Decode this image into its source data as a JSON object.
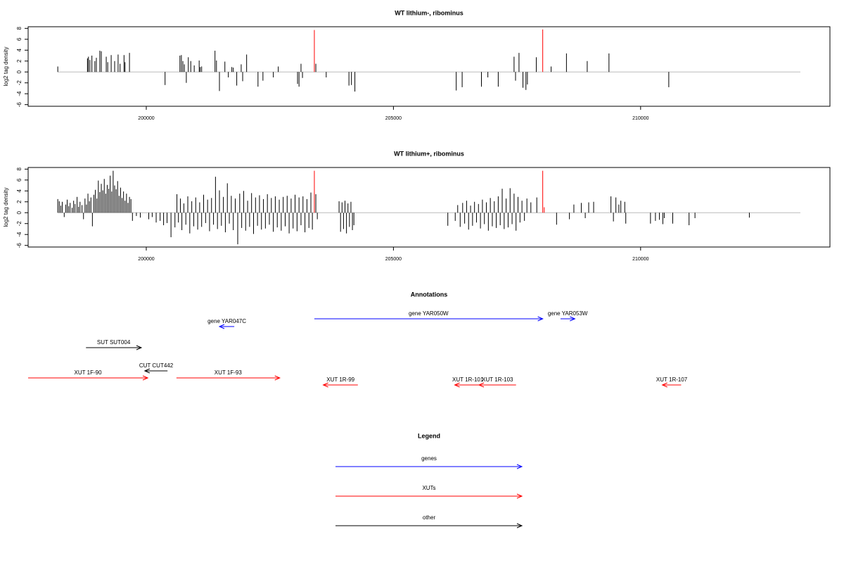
{
  "chart_data": [
    {
      "type": "spike",
      "title": "WT lithium-, ribominus",
      "y_label": "log2 tag density",
      "xlim": [
        197610,
        213830
      ],
      "xticks": [
        200000,
        205000,
        210000
      ],
      "ylim": [
        -6.3,
        8.3
      ],
      "yticks": [
        -6,
        -4,
        -2,
        0,
        2,
        4,
        6,
        8
      ],
      "series": [
        {
          "color": "#000000",
          "x": [
            198210,
            198810,
            198830,
            198860,
            198900,
            198960,
            198990,
            199060,
            199090,
            199190,
            199220,
            199290,
            199360,
            199430,
            199470,
            199550,
            199570,
            199660,
            200380,
            200680,
            200710,
            200740,
            200770,
            200810,
            200850,
            200900,
            200970,
            201070,
            201090,
            201120,
            201390,
            201420,
            201480,
            201590,
            201660,
            201730,
            201760,
            201830,
            201920,
            201950,
            202030,
            202260,
            202360,
            202570,
            202670,
            203060,
            203090,
            203130,
            203160,
            203430,
            203640,
            204100,
            204150,
            204220,
            206270,
            206390,
            206780,
            206910,
            207120,
            207440,
            207470,
            207540,
            207620,
            207680,
            207710,
            207890,
            208190,
            208500,
            208920,
            209360,
            210570
          ],
          "values": [
            1.0,
            2.5,
            2.8,
            2.2,
            3.0,
            2.0,
            2.6,
            3.9,
            3.8,
            2.8,
            1.8,
            3.1,
            2.0,
            3.2,
            1.5,
            3.1,
            1.8,
            3.5,
            -2.4,
            3.0,
            3.1,
            2.0,
            1.4,
            -2.0,
            2.7,
            2.0,
            1.2,
            2.1,
            0.9,
            1.0,
            3.9,
            2.1,
            -3.5,
            1.9,
            -1.0,
            0.9,
            0.8,
            -2.5,
            1.4,
            -1.7,
            3.2,
            -2.7,
            -1.6,
            -1.0,
            1.0,
            -2.2,
            -2.7,
            1.5,
            -1.1,
            1.5,
            -1.0,
            -2.5,
            -2.4,
            -3.6,
            -3.4,
            -2.8,
            -2.7,
            -1.0,
            -2.7,
            2.8,
            -1.6,
            3.5,
            -2.9,
            -3.3,
            -2.3,
            2.7,
            1.0,
            3.4,
            2.0,
            3.4,
            -2.8
          ]
        },
        {
          "color": "#ff0000",
          "x": [
            203400,
            208020
          ],
          "values": [
            7.7,
            7.8
          ]
        }
      ]
    },
    {
      "type": "spike",
      "title": "WT lithium+, ribominus",
      "y_label": "log2 tag density",
      "xlim": [
        197610,
        213830
      ],
      "xticks": [
        200000,
        205000,
        210000
      ],
      "ylim": [
        -6.3,
        8.3
      ],
      "yticks": [
        -6,
        -4,
        -2,
        0,
        2,
        4,
        6,
        8
      ],
      "series": [
        {
          "color": "#000000",
          "x": [
            198210,
            198240,
            198270,
            198300,
            198340,
            198370,
            198400,
            198430,
            198460,
            198500,
            198530,
            198560,
            198600,
            198630,
            198660,
            198700,
            198730,
            198760,
            198790,
            198820,
            198850,
            198880,
            198910,
            198940,
            198970,
            199000,
            199030,
            199060,
            199090,
            199120,
            199150,
            199180,
            199210,
            199240,
            199270,
            199300,
            199330,
            199360,
            199390,
            199420,
            199450,
            199480,
            199510,
            199540,
            199570,
            199600,
            199630,
            199660,
            199690,
            199720,
            199800,
            199880,
            200050,
            200120,
            200200,
            200280,
            200350,
            200420,
            200500,
            200580,
            200620,
            200650,
            200690,
            200720,
            200760,
            200800,
            200840,
            200880,
            200920,
            200960,
            201000,
            201040,
            201080,
            201120,
            201160,
            201200,
            201240,
            201280,
            201320,
            201360,
            201400,
            201440,
            201480,
            201520,
            201560,
            201600,
            201640,
            201680,
            201720,
            201760,
            201800,
            201850,
            201890,
            201930,
            201970,
            202010,
            202050,
            202090,
            202130,
            202170,
            202210,
            202250,
            202290,
            202330,
            202370,
            202410,
            202450,
            202490,
            202530,
            202570,
            202610,
            202650,
            202690,
            202730,
            202770,
            202810,
            202850,
            202890,
            202930,
            202970,
            203010,
            203050,
            203090,
            203130,
            203170,
            203210,
            203250,
            203290,
            203330,
            203360,
            203430,
            203460,
            203900,
            203930,
            203960,
            203990,
            204020,
            204050,
            204080,
            204110,
            204140,
            204170,
            204200,
            206100,
            206250,
            206300,
            206350,
            206400,
            206440,
            206480,
            206520,
            206560,
            206600,
            206640,
            206680,
            206720,
            206760,
            206800,
            206840,
            206880,
            206920,
            206960,
            207000,
            207040,
            207080,
            207120,
            207160,
            207200,
            207240,
            207280,
            207320,
            207360,
            207400,
            207440,
            207480,
            207520,
            207560,
            207600,
            207650,
            207700,
            207780,
            207900,
            208300,
            208560,
            208650,
            208800,
            208880,
            208950,
            209050,
            209400,
            209450,
            209500,
            209560,
            209600,
            209680,
            209700,
            210200,
            210300,
            210380,
            210450,
            210480,
            210650,
            210980,
            211100,
            212200
          ],
          "values": [
            2.5,
            2.1,
            1.3,
            2.0,
            -0.8,
            1.5,
            2.4,
            1.2,
            1.8,
            0.9,
            2.2,
            1.6,
            2.9,
            1.1,
            2.0,
            1.4,
            -1.2,
            2.6,
            1.5,
            3.5,
            2.1,
            2.8,
            -2.5,
            3.3,
            4.2,
            2.6,
            5.9,
            3.8,
            5.3,
            4.1,
            6.2,
            3.5,
            5.1,
            4.4,
            6.8,
            3.9,
            7.7,
            5.0,
            4.3,
            5.8,
            3.1,
            4.6,
            2.7,
            3.9,
            2.2,
            3.5,
            1.8,
            2.9,
            2.5,
            -1.5,
            -0.6,
            -0.9,
            -1.2,
            -0.8,
            -1.8,
            -1.5,
            -2.3,
            -1.9,
            -4.5,
            -2.7,
            3.4,
            -1.8,
            2.6,
            -3.2,
            1.7,
            -2.2,
            3.0,
            -3.8,
            2.1,
            -2.5,
            2.8,
            -3.1,
            1.9,
            -2.6,
            3.3,
            -1.9,
            2.4,
            -3.4,
            2.7,
            -2.2,
            6.6,
            -3.0,
            4.1,
            -2.4,
            2.9,
            -3.6,
            5.4,
            -2.0,
            3.1,
            -3.2,
            2.6,
            -5.8,
            3.5,
            -2.8,
            4.0,
            -3.3,
            2.2,
            -2.6,
            3.6,
            -3.9,
            2.8,
            -2.4,
            3.2,
            -3.1,
            2.5,
            -2.9,
            3.4,
            -2.2,
            2.7,
            -3.5,
            3.0,
            -2.7,
            2.4,
            -3.3,
            2.9,
            -2.5,
            3.1,
            -3.8,
            2.6,
            -2.9,
            3.3,
            -3.4,
            2.8,
            -2.3,
            3.0,
            -3.6,
            2.5,
            -2.8,
            3.7,
            -3.1,
            3.4,
            -1.2,
            2.1,
            -3.5,
            1.9,
            -3.0,
            2.2,
            -3.8,
            1.7,
            -2.6,
            2.0,
            -3.2,
            -2.3,
            -2.4,
            -1.5,
            1.4,
            -2.6,
            1.8,
            -2.0,
            2.2,
            -3.1,
            1.3,
            -2.4,
            2.0,
            -1.8,
            1.6,
            -2.9,
            2.4,
            -2.1,
            1.9,
            -3.3,
            2.7,
            -2.5,
            2.1,
            -2.8,
            3.0,
            -2.3,
            4.4,
            -3.0,
            2.6,
            -2.7,
            4.5,
            -2.1,
            3.5,
            -3.3,
            2.9,
            -1.8,
            2.2,
            -1.5,
            2.6,
            1.9,
            2.8,
            -2.2,
            -1.2,
            1.5,
            1.8,
            -1.0,
            1.9,
            2.0,
            3.0,
            -1.6,
            2.8,
            1.5,
            2.2,
            2.0,
            -2.0,
            -2.0,
            -1.5,
            -1.3,
            -2.1,
            -1.0,
            -2.0,
            -2.3,
            -1.0,
            -0.9
          ]
        },
        {
          "color": "#ff0000",
          "x": [
            203400,
            208020,
            208050
          ],
          "values": [
            7.7,
            7.7,
            1.0
          ]
        }
      ]
    },
    {
      "type": "annotation",
      "title": "Annotations",
      "xlim": [
        197610,
        213830
      ],
      "features": [
        {
          "label": "gene YAR047C",
          "from": 201780,
          "to": 201480,
          "color": "#0000ff"
        },
        {
          "label": "gene YAR050W",
          "from": 203400,
          "to": 208020,
          "color": "#0000ff"
        },
        {
          "label": "gene YAR053W",
          "from": 208380,
          "to": 208670,
          "color": "#0000ff"
        },
        {
          "label": "SUT SUT004",
          "from": 198780,
          "to": 199900,
          "color": "#000000"
        },
        {
          "label": "CUT CUT442",
          "from": 200430,
          "to": 199970,
          "color": "#000000"
        },
        {
          "label": "XUT 1F-90",
          "from": 197610,
          "to": 200030,
          "color": "#ff0000"
        },
        {
          "label": "XUT 1F-93",
          "from": 200610,
          "to": 202700,
          "color": "#ff0000"
        },
        {
          "label": "XUT 1R-99",
          "from": 204280,
          "to": 203580,
          "color": "#ff0000"
        },
        {
          "label": "XUT 1R-101",
          "from": 206770,
          "to": 206240,
          "color": "#ff0000"
        },
        {
          "label": "XUT 1R-103",
          "from": 207480,
          "to": 206730,
          "color": "#ff0000"
        },
        {
          "label": "XUT 1R-107",
          "from": 210820,
          "to": 210440,
          "color": "#ff0000"
        }
      ],
      "legend_title": "Legend",
      "legend": [
        {
          "name": "genes",
          "color": "#0000ff"
        },
        {
          "name": "XUTs",
          "color": "#ff0000"
        },
        {
          "name": "other",
          "color": "#000000"
        }
      ]
    }
  ]
}
